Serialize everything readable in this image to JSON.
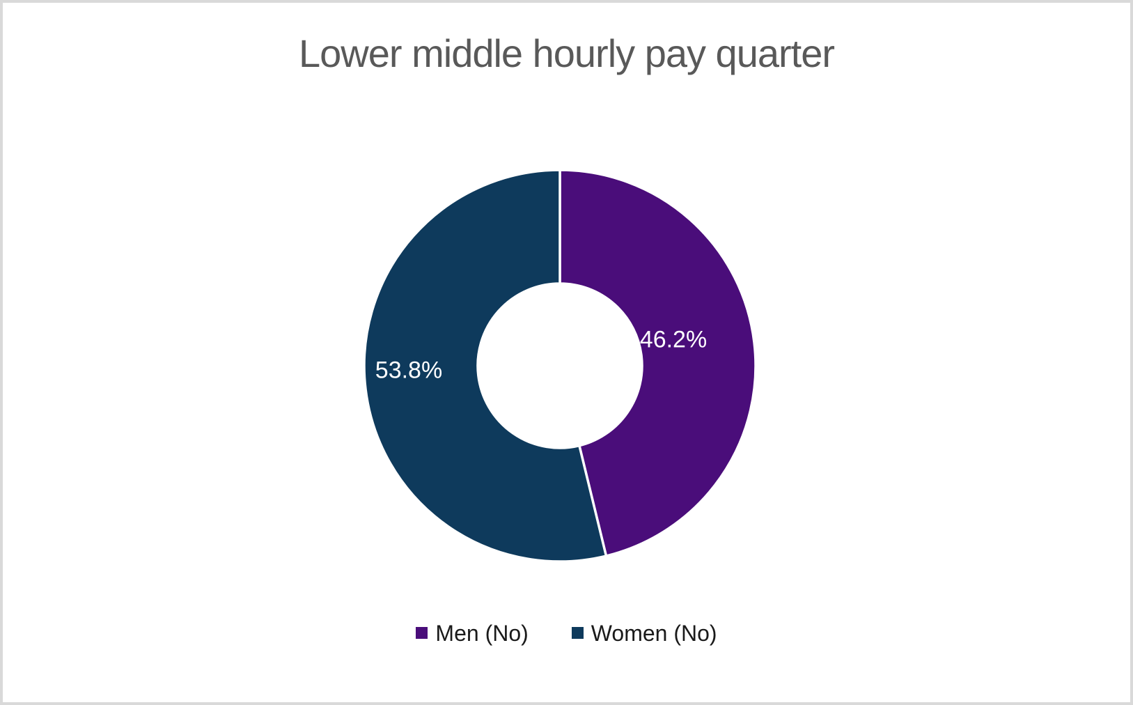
{
  "frame": {
    "background": "#ffffff",
    "border_color": "#d9d9d9"
  },
  "chart_data": {
    "type": "pie",
    "subtype": "doughnut",
    "title": "Lower middle hourly pay quarter",
    "categories": [
      "Men (No)",
      "Women (No)"
    ],
    "values": [
      46.2,
      53.8
    ],
    "data_labels": [
      "46.2%",
      "53.8%"
    ],
    "colors": [
      "#4a0d7a",
      "#0e3a5c"
    ],
    "hole_ratio": 0.42,
    "start_angle_deg": 0,
    "direction": "clockwise",
    "slice_divider_color": "#ffffff",
    "legend_position": "bottom",
    "title_color": "#595959",
    "data_label_color": "#ffffff",
    "legend_text_color": "#1a1a1a"
  }
}
